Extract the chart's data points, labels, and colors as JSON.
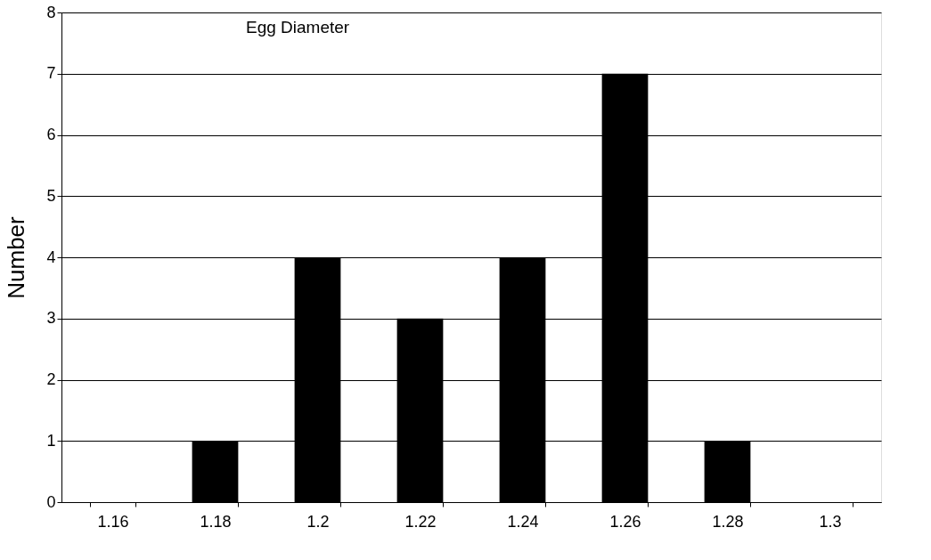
{
  "chart_data": {
    "type": "bar",
    "title": "Egg Diameter",
    "ylabel": "Number",
    "categories": [
      "1.16",
      "1.18",
      "1.2",
      "1.22",
      "1.24",
      "1.26",
      "1.28",
      "1.3"
    ],
    "values": [
      0,
      1,
      4,
      3,
      4,
      7,
      1,
      0
    ],
    "color": "#000000",
    "ylim": [
      0,
      8
    ],
    "yticks": [
      0,
      1,
      2,
      3,
      4,
      5,
      6,
      7,
      8
    ],
    "grid": "y"
  }
}
